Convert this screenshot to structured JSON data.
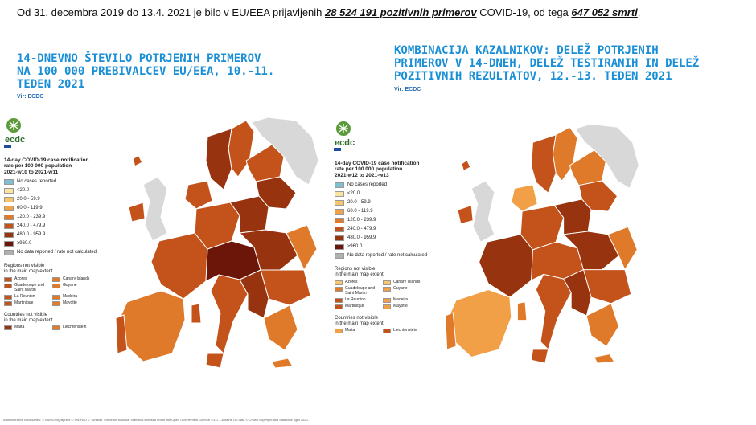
{
  "headline": {
    "prefix": "Od 31. decembra 2019 do 13.4. 2021 je bilo v EU/EEA  prijavljenih  ",
    "cases": "28 524 191 pozitivnih primerov",
    "mid": " COVID-19, od tega ",
    "deaths": "647 052 smrti",
    "end": "."
  },
  "left": {
    "title_lines": [
      "14-DNEVNO ŠTEVILO POTRJENIH PRIMEROV",
      "NA 100 000 PREBIVALCEV EU/EEA, 10.-11.",
      "TEDEN  2021"
    ],
    "source": "Vir: ECDC",
    "logo_text": "ecdc",
    "legend_title_lines": [
      "14-day COVID-19 case notification",
      "rate per 100 000 population",
      "2021-w10 to 2021-w11"
    ]
  },
  "right": {
    "title_lines": [
      "KOMBINACIJA KAZALNIKOV: DELEŽ POTRJENIH",
      "PRIMEROV V 14-DNEH, DELEŽ TESTIRANIH IN DELEŽ",
      "POZITIVNIH REZULTATOV, 12.-13. TEDEN  2021"
    ],
    "source": "Vir: ECDC",
    "logo_text": "ecdc",
    "legend_title_lines": [
      "14-day COVID-19 case notification",
      "rate per 100 000 population",
      "2021-w12 to 2021-w13"
    ]
  },
  "legend_items": [
    {
      "label": "No cases reported",
      "color": "#7fbfcf"
    },
    {
      "label": "<20.0",
      "color": "#fde3a0"
    },
    {
      "label": "20.0 - 59.9",
      "color": "#f9c56b"
    },
    {
      "label": "60.0 - 119.9",
      "color": "#f1a047"
    },
    {
      "label": "120.0 - 239.9",
      "color": "#e07a2b"
    },
    {
      "label": "240.0 - 479.9",
      "color": "#c4531b"
    },
    {
      "label": "480.0 - 959.9",
      "color": "#98330f"
    },
    {
      "label": "≥960.0",
      "color": "#6b1608"
    },
    {
      "label": "No data reported / rate not calculated",
      "color": "#b0b0b0"
    }
  ],
  "regions_title_lines": [
    "Regions not visible",
    "in the main map extent"
  ],
  "regions_left": [
    {
      "label": "Azores",
      "color": "#c4531b"
    },
    {
      "label": "Canary Islands",
      "color": "#e07a2b"
    },
    {
      "label": "Guadeloupe and Saint Martin",
      "color": "#c4531b"
    },
    {
      "label": "Guyane",
      "color": "#e07a2b"
    },
    {
      "label": "La Reunion",
      "color": "#c4531b"
    },
    {
      "label": "Madeira",
      "color": "#e07a2b"
    },
    {
      "label": "Martinique",
      "color": "#c4531b"
    },
    {
      "label": "Mayotte",
      "color": "#e07a2b"
    }
  ],
  "regions_right": [
    {
      "label": "Azores",
      "color": "#f9c56b"
    },
    {
      "label": "Canary Islands",
      "color": "#f9c56b"
    },
    {
      "label": "Guadeloupe and Saint Martin",
      "color": "#e07a2b"
    },
    {
      "label": "Guyane",
      "color": "#f1a047"
    },
    {
      "label": "La Reunion",
      "color": "#c4531b"
    },
    {
      "label": "Madeira",
      "color": "#f1a047"
    },
    {
      "label": "Martinique",
      "color": "#c4531b"
    },
    {
      "label": "Mayotte",
      "color": "#f1a047"
    }
  ],
  "countries_title_lines": [
    "Countries not visible",
    "in the main map extent"
  ],
  "countries_left": [
    {
      "label": "Malta",
      "color": "#98330f"
    },
    {
      "label": "Liechtenstein",
      "color": "#e07a2b"
    }
  ],
  "countries_right": [
    {
      "label": "Malta",
      "color": "#f1a047"
    },
    {
      "label": "Liechtenstein",
      "color": "#c4531b"
    }
  ],
  "footnote": "Administrative boundaries: © EuroGeographics © UN-FAO © Turkstat. Office for National Statistics licensed under the Open Government Licence v.3.0. Contains OS data © Crown copyright and database right 2020."
}
